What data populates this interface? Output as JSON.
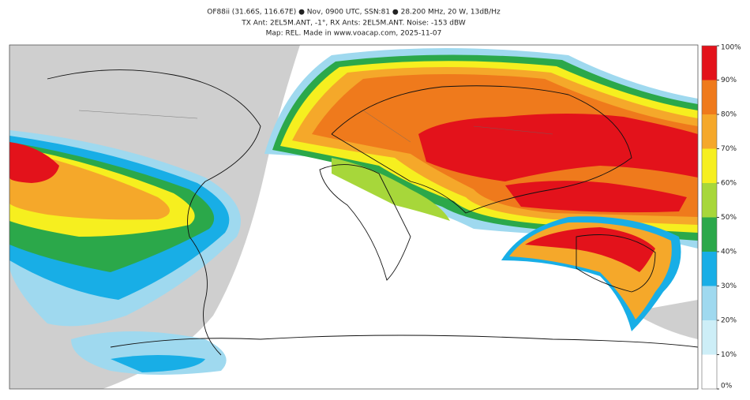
{
  "header": {
    "title_lines": [
      "OF88ii (31.66S, 116.67E) ● Nov, 0900 UTC, SSN:81 ● 28.200 MHz, 20 W, 13dB/Hz",
      "TX Ant: 2EL5M.ANT, -1°, RX Ants: 2EL5M.ANT. Noise: -153 dBW",
      "Map: REL. Made in www.voacap.com, 2025-11-07"
    ]
  },
  "colorbar": {
    "colors": [
      "#ffffff",
      "#cdeef7",
      "#9fd9ef",
      "#18aee6",
      "#2ba84a",
      "#a7d73a",
      "#f6ef1f",
      "#f5a82a",
      "#ef7a1c",
      "#e3121b"
    ],
    "ticks": [
      {
        "value": 0,
        "label": "0%"
      },
      {
        "value": 10,
        "label": "10%"
      },
      {
        "value": 20,
        "label": "20%"
      },
      {
        "value": 30,
        "label": "30%"
      },
      {
        "value": 40,
        "label": "40%"
      },
      {
        "value": 50,
        "label": "50%"
      },
      {
        "value": 60,
        "label": "60%"
      },
      {
        "value": 70,
        "label": "70%"
      },
      {
        "value": 80,
        "label": "80%"
      },
      {
        "value": 90,
        "label": "90%"
      },
      {
        "value": 100,
        "label": "100%"
      }
    ]
  }
}
